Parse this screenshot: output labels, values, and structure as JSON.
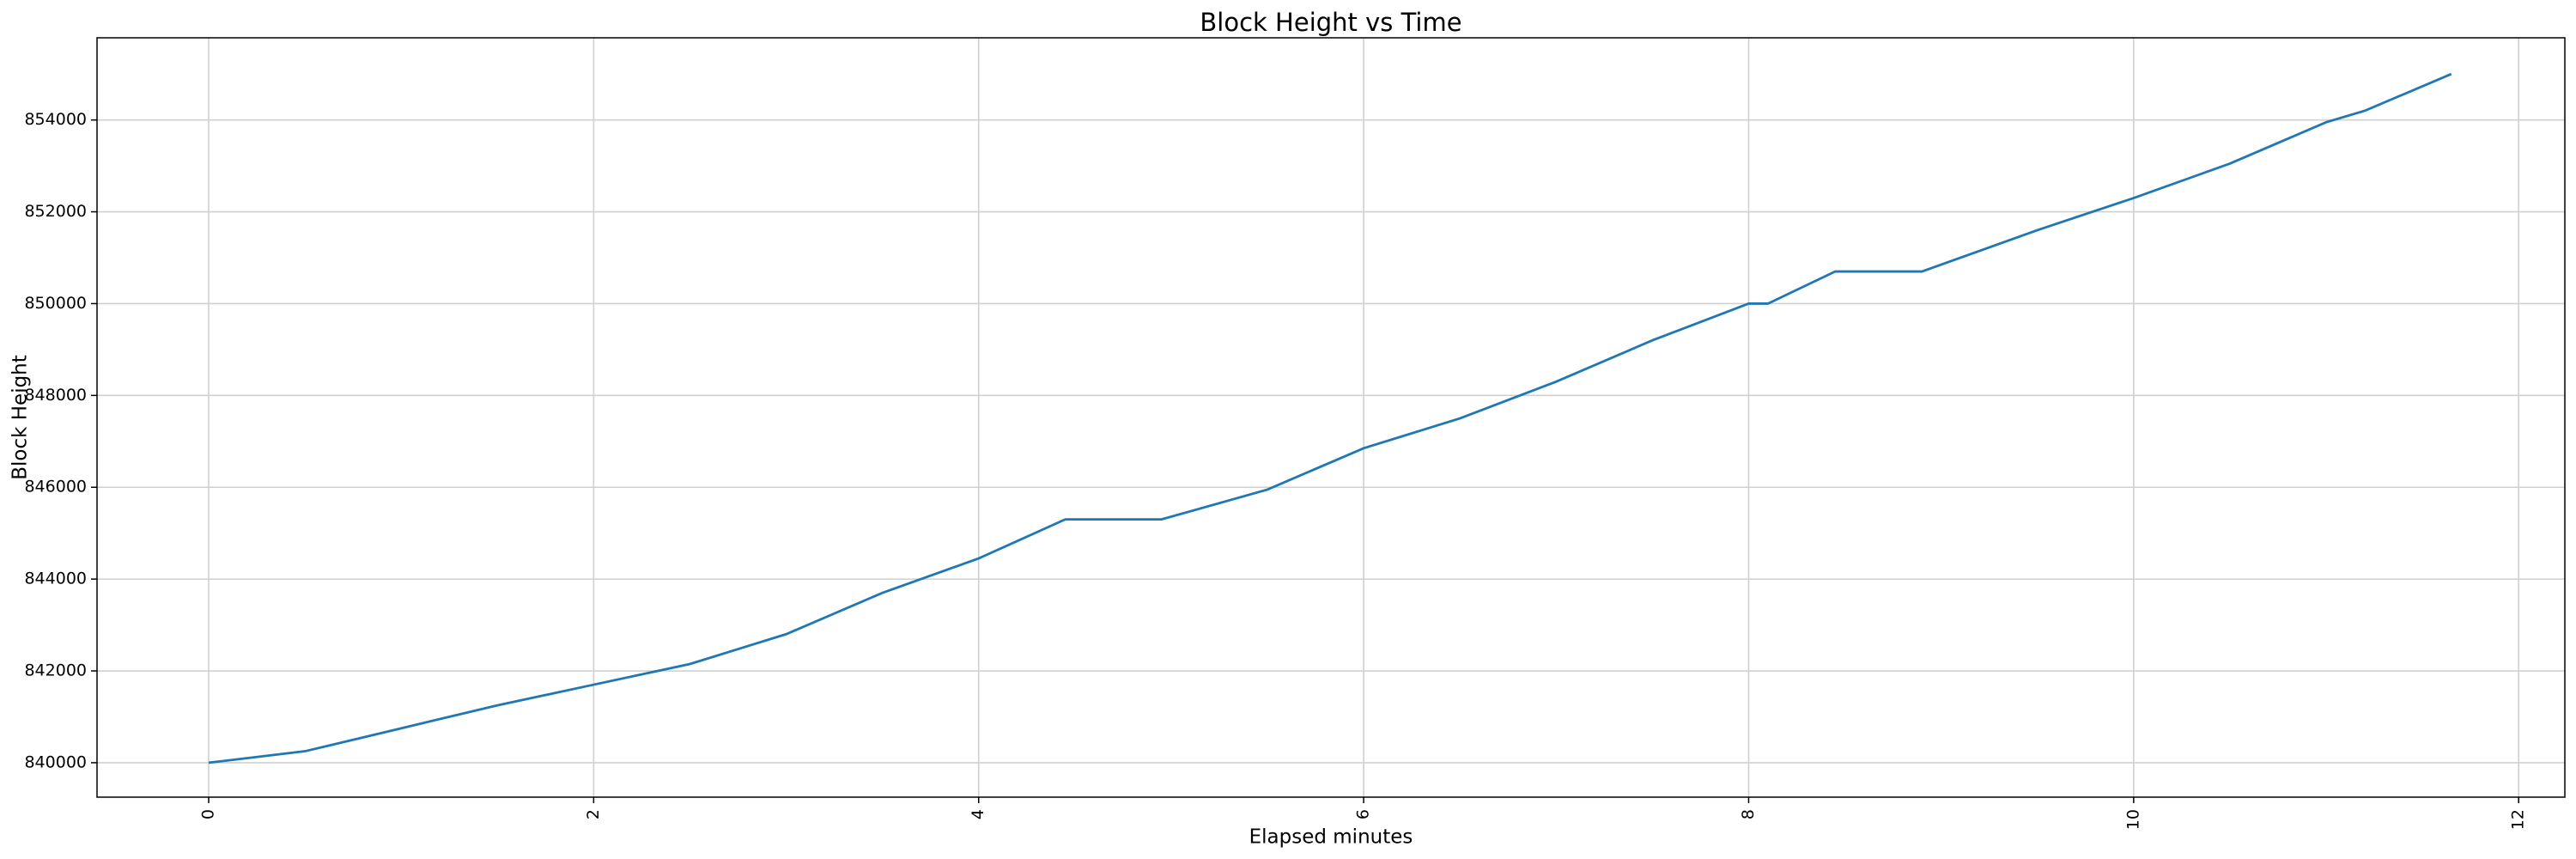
{
  "chart_data": {
    "type": "line",
    "title": "Block Height vs Time",
    "x_label": "Elapsed minutes",
    "y_label": "Block Height",
    "x": [
      0,
      0.5,
      1,
      1.5,
      2,
      2.5,
      3,
      3.5,
      4,
      4.45,
      4.95,
      5.5,
      6,
      6.5,
      7,
      7.5,
      8,
      8.1,
      8.45,
      8.9,
      9.5,
      10,
      10.5,
      11,
      11.2,
      11.65
    ],
    "series": [
      {
        "name": "Block Height",
        "color": "#1f77b4",
        "values": [
          840000,
          840250,
          840750,
          841250,
          841700,
          842150,
          842800,
          843700,
          844450,
          845300,
          845300,
          845950,
          846850,
          847500,
          848300,
          849200,
          850000,
          850000,
          850700,
          850700,
          851600,
          852300,
          853050,
          853950,
          854200,
          855000
        ]
      }
    ],
    "xlim": [
      -0.58,
      12.24
    ],
    "xticks": [
      0,
      2,
      4,
      6,
      8,
      10,
      12
    ],
    "ylim": [
      839250,
      855790
    ],
    "yticks": [
      840000,
      842000,
      844000,
      846000,
      848000,
      850000,
      852000,
      854000
    ],
    "grid": true
  }
}
